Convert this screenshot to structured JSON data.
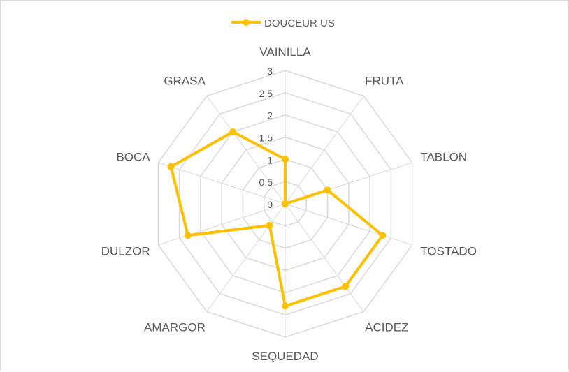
{
  "chart_data": {
    "type": "radar",
    "categories": [
      "VAINILLA",
      "FRUTA",
      "TABLON",
      "TOSTADO",
      "ACIDEZ",
      "SEQUEDAD",
      "AMARGOR",
      "DULZOR",
      "BOCA",
      "GRASA"
    ],
    "series": [
      {
        "name": "DOUCEUR US",
        "values": [
          1.0,
          0.0,
          1.0,
          2.3,
          2.3,
          2.3,
          0.6,
          2.3,
          2.7,
          2.0
        ],
        "color": "#FFC000"
      }
    ],
    "rlim": [
      0,
      3
    ],
    "ticks": [
      "0",
      "0,5",
      "1",
      "1,5",
      "2",
      "2,5",
      "3"
    ],
    "grid": true,
    "legend": "top",
    "gridColor": "#d9d9d9"
  }
}
